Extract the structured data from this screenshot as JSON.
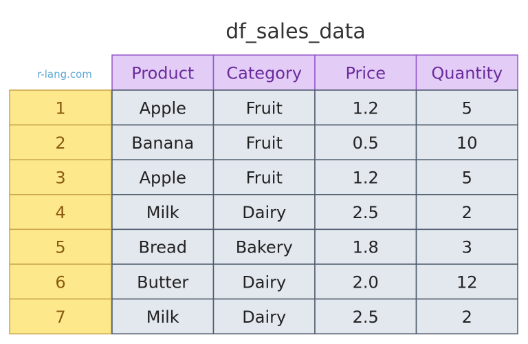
{
  "title": "df_sales_data",
  "watermark": "r-lang.com",
  "table": {
    "columns": [
      "Product",
      "Category",
      "Price",
      "Quantity"
    ],
    "index": [
      "1",
      "2",
      "3",
      "4",
      "5",
      "6",
      "7"
    ],
    "rows": [
      [
        "Apple",
        "Fruit",
        "1.2",
        "5"
      ],
      [
        "Banana",
        "Fruit",
        "0.5",
        "10"
      ],
      [
        "Apple",
        "Fruit",
        "1.2",
        "5"
      ],
      [
        "Milk",
        "Dairy",
        "2.5",
        "2"
      ],
      [
        "Bread",
        "Bakery",
        "1.8",
        "3"
      ],
      [
        "Butter",
        "Dairy",
        "2.0",
        "12"
      ],
      [
        "Milk",
        "Dairy",
        "2.5",
        "2"
      ]
    ]
  }
}
